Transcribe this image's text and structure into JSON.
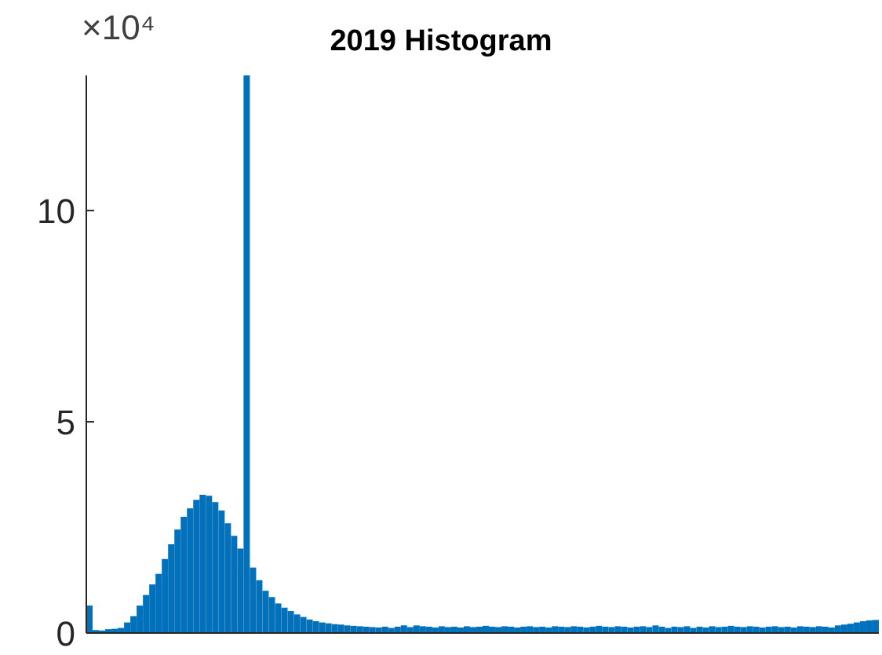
{
  "chart_data": {
    "type": "bar",
    "title": "2019 Histogram",
    "annotations": [
      "×10⁴"
    ],
    "categories": [
      null,
      null,
      null,
      null,
      null,
      null,
      null,
      null,
      null,
      null,
      null,
      null,
      null,
      null,
      null,
      null,
      null,
      null,
      null,
      null,
      null,
      null,
      null,
      null,
      null,
      null,
      null,
      null,
      null,
      null,
      null,
      null,
      null,
      null,
      null,
      null,
      null,
      null,
      null,
      null,
      null,
      null,
      null,
      null,
      null,
      null,
      null,
      null,
      null,
      null,
      null,
      null,
      null,
      null,
      null,
      null,
      null,
      null,
      null,
      null,
      null,
      null,
      null,
      null,
      null,
      null,
      null,
      null,
      null,
      null,
      null,
      null,
      null,
      null,
      null,
      null,
      null,
      null,
      null,
      null,
      null,
      null,
      null,
      null,
      null,
      null,
      null,
      null,
      null,
      null,
      null,
      null,
      null,
      null,
      null,
      null,
      null,
      null,
      null,
      null,
      null,
      null,
      null,
      null,
      null,
      null,
      null,
      null,
      null,
      null,
      null,
      null,
      null,
      null,
      null,
      null,
      null,
      null,
      null,
      null,
      null,
      null,
      null,
      null,
      null,
      null
    ],
    "values": [
      0.65,
      0.07,
      0.06,
      0.09,
      0.1,
      0.12,
      0.25,
      0.4,
      0.65,
      0.9,
      1.15,
      1.4,
      1.75,
      2.1,
      2.45,
      2.75,
      2.95,
      3.15,
      3.27,
      3.25,
      3.1,
      2.9,
      2.6,
      2.3,
      2.0,
      13.2,
      1.55,
      1.25,
      1.0,
      0.85,
      0.7,
      0.6,
      0.52,
      0.44,
      0.38,
      0.32,
      0.28,
      0.25,
      0.23,
      0.21,
      0.2,
      0.18,
      0.17,
      0.16,
      0.15,
      0.14,
      0.13,
      0.15,
      0.12,
      0.15,
      0.18,
      0.14,
      0.18,
      0.16,
      0.15,
      0.13,
      0.16,
      0.14,
      0.15,
      0.13,
      0.16,
      0.14,
      0.15,
      0.17,
      0.15,
      0.14,
      0.16,
      0.15,
      0.13,
      0.15,
      0.16,
      0.14,
      0.15,
      0.13,
      0.16,
      0.15,
      0.14,
      0.16,
      0.15,
      0.13,
      0.15,
      0.17,
      0.15,
      0.14,
      0.16,
      0.15,
      0.13,
      0.15,
      0.16,
      0.14,
      0.18,
      0.15,
      0.12,
      0.15,
      0.14,
      0.16,
      0.12,
      0.15,
      0.13,
      0.16,
      0.14,
      0.15,
      0.17,
      0.15,
      0.14,
      0.16,
      0.15,
      0.13,
      0.15,
      0.16,
      0.14,
      0.15,
      0.13,
      0.16,
      0.15,
      0.14,
      0.16,
      0.15,
      0.13,
      0.18,
      0.2,
      0.22,
      0.25,
      0.28,
      0.3,
      0.31
    ],
    "color": "#0072bd",
    "ylim": [
      0,
      13.2
    ],
    "yticks": [
      0,
      5,
      10
    ]
  }
}
